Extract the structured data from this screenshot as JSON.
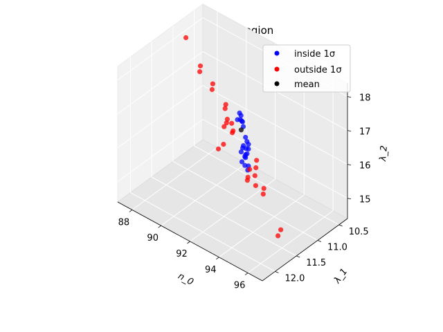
{
  "chart_data": {
    "type": "scatter3d",
    "title": "One Sigma region",
    "xlabel": "n_0",
    "ylabel": "λ_1",
    "zlabel": "λ_2",
    "xlim": [
      87,
      97
    ],
    "ylim": [
      10.3,
      12.3
    ],
    "zlim": [
      14.4,
      18.4
    ],
    "x_ticks": [
      88,
      90,
      92,
      94,
      96
    ],
    "y_ticks": [
      10.5,
      11.0,
      11.5,
      12.0
    ],
    "z_ticks": [
      15,
      16,
      17,
      18
    ],
    "x_tick_labels": [
      "88",
      "90",
      "92",
      "94",
      "96"
    ],
    "y_tick_labels": [
      "10.5",
      "11.0",
      "11.5",
      "12.0"
    ],
    "z_tick_labels": [
      "15",
      "16",
      "17",
      "18"
    ],
    "grid": true,
    "legend_position": "top-right",
    "legend": [
      {
        "label": "inside 1σ",
        "color": "#0000ff"
      },
      {
        "label": "outside 1σ",
        "color": "#ff0000"
      },
      {
        "label": "mean",
        "color": "#000000"
      }
    ],
    "series": [
      {
        "name": "inside 1σ",
        "color": "#0000ff",
        "points": [
          [
            91.6,
            11.0,
            16.9
          ],
          [
            91.7,
            11.0,
            16.85
          ],
          [
            91.8,
            11.05,
            16.8
          ],
          [
            91.6,
            11.05,
            16.75
          ],
          [
            91.75,
            11.0,
            16.7
          ],
          [
            92.1,
            11.1,
            16.85
          ],
          [
            92.3,
            11.15,
            16.8
          ],
          [
            92.6,
            11.2,
            16.6
          ],
          [
            92.7,
            11.2,
            16.5
          ],
          [
            92.6,
            11.25,
            16.4
          ],
          [
            92.8,
            11.2,
            16.3
          ],
          [
            92.5,
            11.15,
            16.2
          ],
          [
            92.9,
            11.3,
            16.25
          ],
          [
            93.0,
            11.3,
            16.3
          ],
          [
            92.7,
            11.25,
            16.1
          ],
          [
            92.6,
            11.2,
            16.0
          ],
          [
            92.8,
            11.2,
            15.8
          ],
          [
            92.5,
            11.25,
            15.9
          ],
          [
            92.9,
            11.25,
            15.75
          ],
          [
            93.0,
            11.35,
            16.0
          ],
          [
            92.7,
            11.3,
            16.4
          ],
          [
            93.1,
            11.3,
            16.6
          ],
          [
            92.3,
            11.2,
            16.1
          ]
        ]
      },
      {
        "name": "outside 1σ",
        "color": "#ff0000",
        "points": [
          [
            87.6,
            10.9,
            18.1
          ],
          [
            88.6,
            10.9,
            17.5
          ],
          [
            88.7,
            10.95,
            17.4
          ],
          [
            89.6,
            10.95,
            17.25
          ],
          [
            89.7,
            11.0,
            17.15
          ],
          [
            90.5,
            10.95,
            16.85
          ],
          [
            90.6,
            11.0,
            16.8
          ],
          [
            90.9,
            11.05,
            16.6
          ],
          [
            90.7,
            11.0,
            16.4
          ],
          [
            91.2,
            11.05,
            16.55
          ],
          [
            91.3,
            11.05,
            16.35
          ],
          [
            91.1,
            11.0,
            16.2
          ],
          [
            94.1,
            11.45,
            16.5
          ],
          [
            94.2,
            11.5,
            16.35
          ],
          [
            94.9,
            11.55,
            15.95
          ],
          [
            95.0,
            11.6,
            15.85
          ],
          [
            96.8,
            11.8,
            15.4
          ],
          [
            97.2,
            12.0,
            15.5
          ],
          [
            89.8,
            10.75,
            15.85
          ],
          [
            89.9,
            10.8,
            15.4
          ],
          [
            89.4,
            10.75,
            15.1
          ],
          [
            91.0,
            10.6,
            14.5
          ],
          [
            91.7,
            10.85,
            14.8
          ],
          [
            92.3,
            11.0,
            15.4
          ],
          [
            93.4,
            11.25,
            15.7
          ],
          [
            93.6,
            11.3,
            15.5
          ]
        ]
      },
      {
        "name": "mean",
        "color": "#000000",
        "points": [
          [
            92.3,
            11.2,
            16.75
          ]
        ]
      }
    ]
  }
}
